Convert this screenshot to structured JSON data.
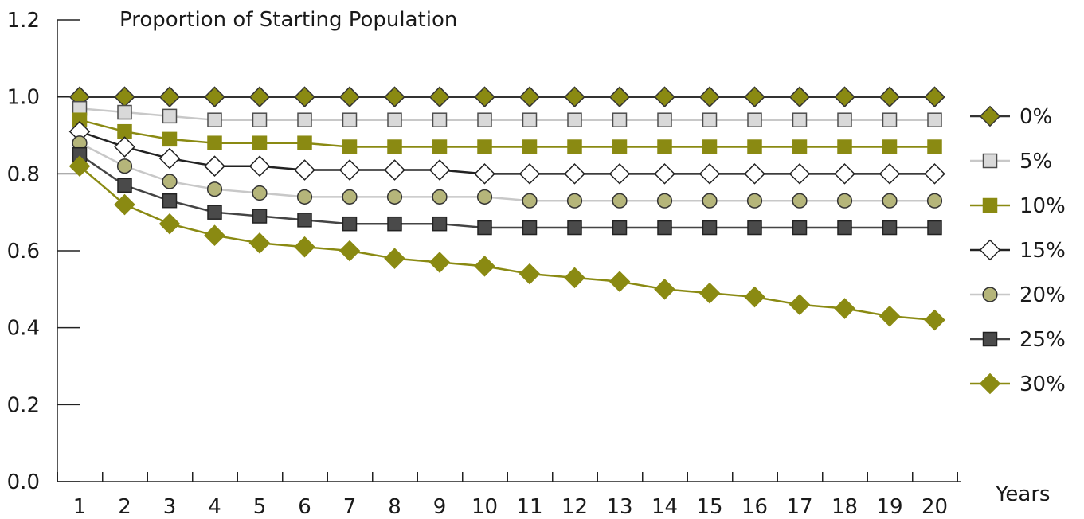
{
  "chart_data": {
    "type": "line",
    "title": "Proportion of Starting Population",
    "xlabel": "Years",
    "ylabel": "",
    "x": [
      1,
      2,
      3,
      4,
      5,
      6,
      7,
      8,
      9,
      10,
      11,
      12,
      13,
      14,
      15,
      16,
      17,
      18,
      19,
      20
    ],
    "x_tick_labels": [
      "1",
      "2",
      "3",
      "4",
      "5",
      "6",
      "7",
      "8",
      "9",
      "10",
      "11",
      "12",
      "13",
      "14",
      "15",
      "16",
      "17",
      "18",
      "19",
      "20"
    ],
    "ylim": [
      0,
      1.2
    ],
    "y_tick_labels": [
      "0.0",
      "0.2",
      "0.4",
      "0.6",
      "0.8",
      "1.0",
      "1.2"
    ],
    "y_ticks": [
      0,
      0.2,
      0.4,
      0.6,
      0.8,
      1.0,
      1.2
    ],
    "grid": false,
    "legend_position": "right",
    "series": [
      {
        "name": "0%",
        "marker": "diamond",
        "line_color": "#333333",
        "fill_color": "#8a8a12",
        "stroke_color": "#333333",
        "values": [
          1.0,
          1.0,
          1.0,
          1.0,
          1.0,
          1.0,
          1.0,
          1.0,
          1.0,
          1.0,
          1.0,
          1.0,
          1.0,
          1.0,
          1.0,
          1.0,
          1.0,
          1.0,
          1.0,
          1.0
        ]
      },
      {
        "name": "5%",
        "marker": "square",
        "line_color": "#c8c8c8",
        "fill_color": "#d9d9d9",
        "stroke_color": "#4d4d4d",
        "values": [
          0.97,
          0.96,
          0.95,
          0.94,
          0.94,
          0.94,
          0.94,
          0.94,
          0.94,
          0.94,
          0.94,
          0.94,
          0.94,
          0.94,
          0.94,
          0.94,
          0.94,
          0.94,
          0.94,
          0.94
        ]
      },
      {
        "name": "10%",
        "marker": "square",
        "line_color": "#8a8a12",
        "fill_color": "#8a8a12",
        "stroke_color": "#8a8a12",
        "values": [
          0.94,
          0.91,
          0.89,
          0.88,
          0.88,
          0.88,
          0.87,
          0.87,
          0.87,
          0.87,
          0.87,
          0.87,
          0.87,
          0.87,
          0.87,
          0.87,
          0.87,
          0.87,
          0.87,
          0.87
        ]
      },
      {
        "name": "15%",
        "marker": "diamond",
        "line_color": "#222222",
        "fill_color": "#ffffff",
        "stroke_color": "#222222",
        "values": [
          0.91,
          0.87,
          0.84,
          0.82,
          0.82,
          0.81,
          0.81,
          0.81,
          0.81,
          0.8,
          0.8,
          0.8,
          0.8,
          0.8,
          0.8,
          0.8,
          0.8,
          0.8,
          0.8,
          0.8
        ]
      },
      {
        "name": "20%",
        "marker": "circle",
        "line_color": "#c8c8c8",
        "fill_color": "#b5b57a",
        "stroke_color": "#333333",
        "values": [
          0.88,
          0.82,
          0.78,
          0.76,
          0.75,
          0.74,
          0.74,
          0.74,
          0.74,
          0.74,
          0.73,
          0.73,
          0.73,
          0.73,
          0.73,
          0.73,
          0.73,
          0.73,
          0.73,
          0.73
        ]
      },
      {
        "name": "25%",
        "marker": "square",
        "line_color": "#444444",
        "fill_color": "#4a4a4a",
        "stroke_color": "#222222",
        "values": [
          0.85,
          0.77,
          0.73,
          0.7,
          0.69,
          0.68,
          0.67,
          0.67,
          0.67,
          0.66,
          0.66,
          0.66,
          0.66,
          0.66,
          0.66,
          0.66,
          0.66,
          0.66,
          0.66,
          0.66
        ]
      },
      {
        "name": "30%",
        "marker": "diamond",
        "line_color": "#8a8a12",
        "fill_color": "#8a8a12",
        "stroke_color": "#8a8a12",
        "values": [
          0.82,
          0.72,
          0.67,
          0.64,
          0.62,
          0.61,
          0.6,
          0.58,
          0.57,
          0.56,
          0.54,
          0.53,
          0.52,
          0.5,
          0.49,
          0.48,
          0.46,
          0.45,
          0.43,
          0.42
        ]
      }
    ]
  }
}
